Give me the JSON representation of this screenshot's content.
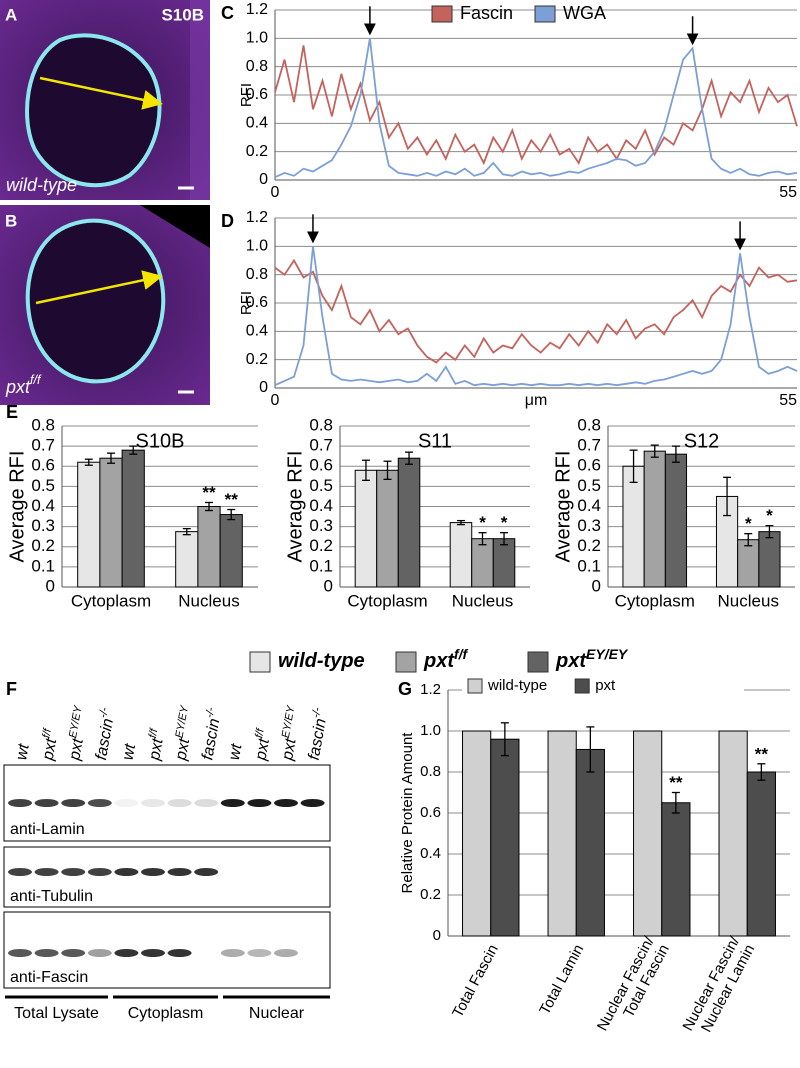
{
  "panel_a": {
    "label": "A",
    "stage": "S10B",
    "genotype": "wild-type"
  },
  "panel_b": {
    "label": "B",
    "genotype": "pxt",
    "genotype_superscript": "f/f"
  },
  "panel_e": {
    "label": "E"
  },
  "panel_f": {
    "label": "F",
    "lanes": [
      {
        "text": "wt"
      },
      {
        "text": "pxt",
        "superscript": "f/f"
      },
      {
        "text": "pxt",
        "superscript": "EY/EY"
      },
      {
        "text": "fascin",
        "superscript": "-/-"
      },
      {
        "text": "wt"
      },
      {
        "text": "pxt",
        "superscript": "f/f"
      },
      {
        "text": "pxt",
        "superscript": "EY/EY"
      },
      {
        "text": "fascin",
        "superscript": "-/-"
      },
      {
        "text": "wt"
      },
      {
        "text": "pxt",
        "superscript": "f/f"
      },
      {
        "text": "pxt",
        "superscript": "EY/EY"
      },
      {
        "text": "fascin",
        "superscript": "-/-"
      }
    ],
    "antibodies": [
      "anti-Lamin",
      "anti-Tubulin",
      "anti-Fascin"
    ],
    "fractions": [
      "Total Lysate",
      "Cytoplasm",
      "Nuclear"
    ]
  },
  "chart_data": [
    {
      "type": "line",
      "panel_label": "C",
      "ylabel": "RFI",
      "x": [
        0,
        1,
        2,
        3,
        4,
        5,
        6,
        7,
        8,
        9,
        10,
        11,
        12,
        13,
        14,
        15,
        16,
        17,
        18,
        19,
        20,
        21,
        22,
        23,
        24,
        25,
        26,
        27,
        28,
        29,
        30,
        31,
        32,
        33,
        34,
        35,
        36,
        37,
        38,
        39,
        40,
        41,
        42,
        43,
        44,
        45,
        46,
        47,
        48,
        49,
        50,
        51,
        52,
        53,
        54,
        55
      ],
      "xlim": [
        0,
        55
      ],
      "xticks": [
        0,
        55
      ],
      "ylim": [
        0,
        1.2
      ],
      "yticks": [
        0,
        0.2,
        0.4,
        0.6,
        0.8,
        {
          "value": 1,
          "label": "1.0"
        },
        1.2
      ],
      "grid": true,
      "legend": "top",
      "series": [
        {
          "name": "Fascin",
          "color": "#c4625c",
          "values": [
            0.62,
            0.85,
            0.55,
            0.95,
            0.5,
            0.7,
            0.45,
            0.75,
            0.5,
            0.68,
            0.42,
            0.55,
            0.3,
            0.4,
            0.22,
            0.3,
            0.18,
            0.28,
            0.15,
            0.32,
            0.2,
            0.25,
            0.12,
            0.3,
            0.2,
            0.35,
            0.15,
            0.28,
            0.2,
            0.32,
            0.18,
            0.22,
            0.12,
            0.3,
            0.2,
            0.25,
            0.15,
            0.28,
            0.22,
            0.35,
            0.18,
            0.3,
            0.25,
            0.4,
            0.35,
            0.5,
            0.7,
            0.45,
            0.62,
            0.55,
            0.7,
            0.48,
            0.65,
            0.55,
            0.6,
            0.38
          ]
        },
        {
          "name": "WGA",
          "color": "#7c9fd6",
          "values": [
            0.02,
            0.05,
            0.03,
            0.08,
            0.06,
            0.1,
            0.14,
            0.25,
            0.38,
            0.6,
            1.0,
            0.4,
            0.1,
            0.05,
            0.04,
            0.03,
            0.05,
            0.03,
            0.06,
            0.04,
            0.08,
            0.03,
            0.05,
            0.12,
            0.04,
            0.03,
            0.06,
            0.04,
            0.05,
            0.03,
            0.04,
            0.06,
            0.05,
            0.08,
            0.1,
            0.12,
            0.15,
            0.14,
            0.1,
            0.12,
            0.2,
            0.35,
            0.6,
            0.85,
            0.93,
            0.5,
            0.15,
            0.08,
            0.05,
            0.08,
            0.04,
            0.03,
            0.05,
            0.06,
            0.04,
            0.05
          ]
        }
      ]
    },
    {
      "type": "line",
      "panel_label": "D",
      "ylabel": "RFI",
      "xlabel": "μm",
      "x": [
        0,
        1,
        2,
        3,
        4,
        5,
        6,
        7,
        8,
        9,
        10,
        11,
        12,
        13,
        14,
        15,
        16,
        17,
        18,
        19,
        20,
        21,
        22,
        23,
        24,
        25,
        26,
        27,
        28,
        29,
        30,
        31,
        32,
        33,
        34,
        35,
        36,
        37,
        38,
        39,
        40,
        41,
        42,
        43,
        44,
        45,
        46,
        47,
        48,
        49,
        50,
        51,
        52,
        53,
        54,
        55
      ],
      "xlim": [
        0,
        55
      ],
      "xticks": [
        0,
        55
      ],
      "ylim": [
        0,
        1.2
      ],
      "yticks": [
        0,
        0.2,
        0.4,
        0.6,
        0.8,
        {
          "value": 1,
          "label": "1.0"
        },
        1.2
      ],
      "grid": true,
      "series": [
        {
          "color": "#c4625c",
          "values": [
            0.85,
            0.8,
            0.9,
            0.78,
            0.82,
            0.65,
            0.55,
            0.72,
            0.5,
            0.45,
            0.55,
            0.4,
            0.48,
            0.38,
            0.42,
            0.3,
            0.22,
            0.18,
            0.25,
            0.2,
            0.3,
            0.22,
            0.35,
            0.25,
            0.3,
            0.28,
            0.38,
            0.3,
            0.25,
            0.32,
            0.28,
            0.38,
            0.3,
            0.4,
            0.32,
            0.45,
            0.38,
            0.48,
            0.35,
            0.42,
            0.45,
            0.38,
            0.5,
            0.55,
            0.62,
            0.5,
            0.65,
            0.72,
            0.68,
            0.8,
            0.72,
            0.85,
            0.78,
            0.8,
            0.75,
            0.76
          ]
        },
        {
          "color": "#7c9fd6",
          "values": [
            0.02,
            0.05,
            0.08,
            0.3,
            1.0,
            0.5,
            0.1,
            0.06,
            0.05,
            0.06,
            0.05,
            0.04,
            0.05,
            0.06,
            0.04,
            0.05,
            0.1,
            0.05,
            0.15,
            0.03,
            0.05,
            0.02,
            0.03,
            0.02,
            0.03,
            0.02,
            0.03,
            0.02,
            0.03,
            0.02,
            0.02,
            0.03,
            0.02,
            0.03,
            0.02,
            0.03,
            0.02,
            0.03,
            0.04,
            0.03,
            0.05,
            0.06,
            0.08,
            0.1,
            0.12,
            0.1,
            0.12,
            0.2,
            0.45,
            0.95,
            0.5,
            0.15,
            0.1,
            0.12,
            0.15,
            0.12
          ]
        }
      ]
    },
    {
      "type": "bar",
      "title": "S10B",
      "ylabel": "Average RFI",
      "legend": "bottom",
      "categories": [
        "Cytoplasm",
        "Nucleus"
      ],
      "ylim": [
        0,
        0.8
      ],
      "yticks": [
        0,
        0.1,
        0.2,
        0.3,
        0.4,
        0.5,
        0.6,
        0.7,
        0.8
      ],
      "grid": true,
      "series": [
        {
          "name": "wild-type",
          "color": "#e6e6e6",
          "values": [
            0.62,
            0.275
          ],
          "errors": [
            0.015,
            0.015
          ],
          "annotations": [
            null,
            null
          ]
        },
        {
          "name": "pxt",
          "name_superscript": "f/f",
          "color": "#a3a3a3",
          "values": [
            0.64,
            0.4
          ],
          "errors": [
            0.025,
            0.02
          ],
          "annotations": [
            null,
            "**"
          ]
        },
        {
          "name": "pxt",
          "name_superscript": "EY/EY",
          "color": "#636363",
          "values": [
            0.68,
            0.36
          ],
          "errors": [
            0.02,
            0.025
          ],
          "annotations": [
            null,
            "**"
          ]
        }
      ]
    },
    {
      "type": "bar",
      "title": "S11",
      "ylabel": "Average RFI",
      "categories": [
        "Cytoplasm",
        "Nucleus"
      ],
      "ylim": [
        0,
        0.8
      ],
      "yticks": [
        0,
        0.1,
        0.2,
        0.3,
        0.4,
        0.5,
        0.6,
        0.7,
        0.8
      ],
      "grid": true,
      "series": [
        {
          "color": "#e6e6e6",
          "values": [
            0.58,
            0.32
          ],
          "errors": [
            0.05,
            0.01
          ],
          "annotations": [
            null,
            null
          ]
        },
        {
          "color": "#a3a3a3",
          "values": [
            0.58,
            0.24
          ],
          "errors": [
            0.045,
            0.03
          ],
          "annotations": [
            null,
            "*"
          ]
        },
        {
          "color": "#636363",
          "values": [
            0.64,
            0.24
          ],
          "errors": [
            0.03,
            0.03
          ],
          "annotations": [
            null,
            "*"
          ]
        }
      ]
    },
    {
      "type": "bar",
      "title": "S12",
      "ylabel": "Average RFI",
      "categories": [
        "Cytoplasm",
        "Nucleus"
      ],
      "ylim": [
        0,
        0.8
      ],
      "yticks": [
        0,
        0.1,
        0.2,
        0.3,
        0.4,
        0.5,
        0.6,
        0.7,
        0.8
      ],
      "grid": true,
      "series": [
        {
          "color": "#e6e6e6",
          "values": [
            0.6,
            0.45
          ],
          "errors": [
            0.08,
            0.095
          ],
          "annotations": [
            null,
            null
          ]
        },
        {
          "color": "#a3a3a3",
          "values": [
            0.675,
            0.235
          ],
          "errors": [
            0.03,
            0.03
          ],
          "annotations": [
            null,
            "*"
          ]
        },
        {
          "color": "#636363",
          "values": [
            0.66,
            0.275
          ],
          "errors": [
            0.04,
            0.03
          ],
          "annotations": [
            null,
            "*"
          ]
        }
      ]
    },
    {
      "type": "bar",
      "panel_label": "G",
      "ylabel": "Relative Protein Amount",
      "legend": "top",
      "categories": [
        [
          "Total Fascin"
        ],
        [
          "Total Lamin"
        ],
        [
          "Nuclear Fascin/",
          "Total Fascin"
        ],
        [
          "Nuclear Fascin/",
          "Nuclear Lamin"
        ]
      ],
      "ylim": [
        0,
        1.2
      ],
      "yticks": [
        0,
        0.2,
        0.4,
        0.6,
        0.8,
        {
          "value": 1,
          "label": "1.0"
        },
        1.2
      ],
      "grid": true,
      "series": [
        {
          "name": "wild-type",
          "color": "#d0d0d0",
          "values": [
            1,
            1,
            1,
            1
          ]
        },
        {
          "name": "pxt",
          "color": "#4d4d4d",
          "values": [
            0.96,
            0.91,
            0.65,
            0.8
          ],
          "errors": [
            0.08,
            0.11,
            0.05,
            0.04
          ],
          "annotations": [
            null,
            null,
            "**",
            "**"
          ]
        }
      ]
    }
  ]
}
